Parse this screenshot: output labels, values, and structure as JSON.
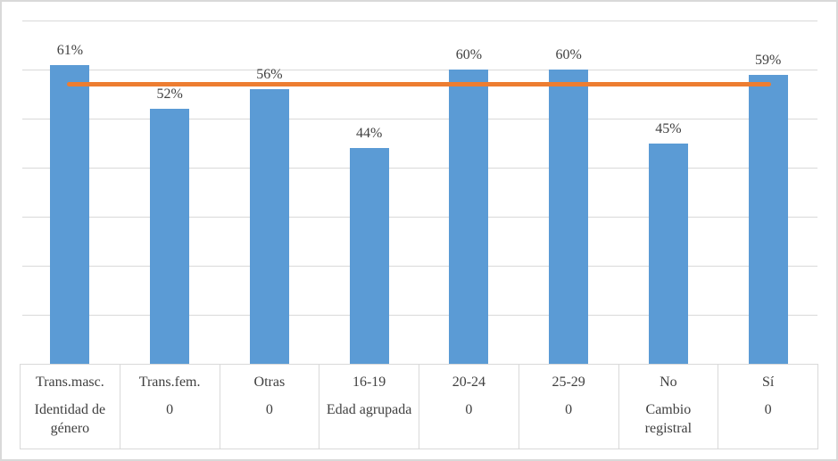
{
  "colors": {
    "bar": "#5B9BD5",
    "reference_line": "#ED7D31",
    "gridline": "#D9D9D9",
    "text": "#404040",
    "frame_border": "#D9D9D9"
  },
  "chart_data": {
    "type": "bar",
    "title": "",
    "xlabel": "",
    "ylabel": "",
    "categories": [
      "Trans.masc.",
      "Trans.fem.",
      "Otras",
      "16-19",
      "20-24",
      "25-29",
      "No",
      "Sí"
    ],
    "group_labels": [
      "Identidad de género",
      "0",
      "0",
      "Edad agrupada",
      "0",
      "0",
      "Cambio registral",
      "0"
    ],
    "series": [
      {
        "name": "percentage",
        "values": [
          61,
          52,
          56,
          44,
          60,
          60,
          45,
          59
        ],
        "data_labels": [
          "61%",
          "52%",
          "56%",
          "44%",
          "60%",
          "60%",
          "45%",
          "59%"
        ]
      }
    ],
    "reference_line": {
      "type": "horizontal-average-line",
      "value": 57
    },
    "ylim": [
      0,
      70
    ],
    "grid_step": 10,
    "grid": true,
    "y_axis_labels_visible": false,
    "legend_position": "none",
    "axis_table_visible": true
  }
}
